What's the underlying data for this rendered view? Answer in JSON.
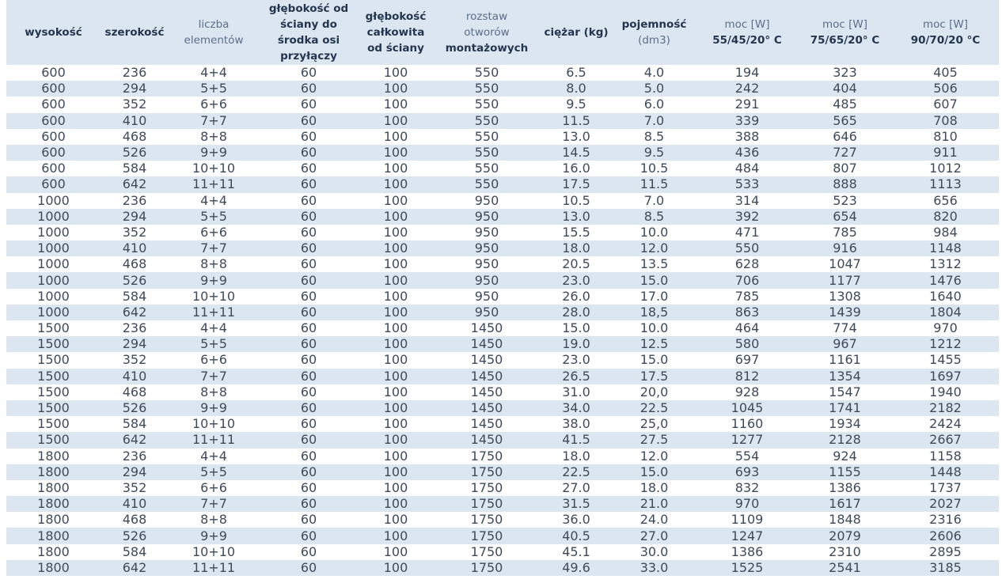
{
  "table": {
    "header": [
      [
        "wysokość"
      ],
      [
        "szerokość"
      ],
      [
        "liczba",
        "elementów"
      ],
      [
        "głębokość od",
        "ściany do",
        "środka osi",
        "przyłączy"
      ],
      [
        "głębokość",
        "całkowita",
        "od ściany"
      ],
      [
        "rozstaw",
        "otworów",
        "montażowych"
      ],
      [
        "ciężar (kg)"
      ],
      [
        "pojemność",
        "(dm3)"
      ],
      [
        "moc [W]",
        "55/45/20° C"
      ],
      [
        "moc [W]",
        "75/65/20° C"
      ],
      [
        "moc [W]",
        "90/70/20 °C"
      ]
    ],
    "rows": [
      [
        "600",
        "236",
        "4+4",
        "60",
        "100",
        "550",
        "6.5",
        "4.0",
        "194",
        "323",
        "405"
      ],
      [
        "600",
        "294",
        "5+5",
        "60",
        "100",
        "550",
        "8.0",
        "5.0",
        "242",
        "404",
        "506"
      ],
      [
        "600",
        "352",
        "6+6",
        "60",
        "100",
        "550",
        "9.5",
        "6.0",
        "291",
        "485",
        "607"
      ],
      [
        "600",
        "410",
        "7+7",
        "60",
        "100",
        "550",
        "11.5",
        "7.0",
        "339",
        "565",
        "708"
      ],
      [
        "600",
        "468",
        "8+8",
        "60",
        "100",
        "550",
        "13.0",
        "8.5",
        "388",
        "646",
        "810"
      ],
      [
        "600",
        "526",
        "9+9",
        "60",
        "100",
        "550",
        "14.5",
        "9.5",
        "436",
        "727",
        "911"
      ],
      [
        "600",
        "584",
        "10+10",
        "60",
        "100",
        "550",
        "16.0",
        "10.5",
        "484",
        "807",
        "1012"
      ],
      [
        "600",
        "642",
        "11+11",
        "60",
        "100",
        "550",
        "17.5",
        "11.5",
        "533",
        "888",
        "1113"
      ],
      [
        "1000",
        "236",
        "4+4",
        "60",
        "100",
        "950",
        "10.5",
        "7.0",
        "314",
        "523",
        "656"
      ],
      [
        "1000",
        "294",
        "5+5",
        "60",
        "100",
        "950",
        "13.0",
        "8.5",
        "392",
        "654",
        "820"
      ],
      [
        "1000",
        "352",
        "6+6",
        "60",
        "100",
        "950",
        "15.5",
        "10.0",
        "471",
        "785",
        "984"
      ],
      [
        "1000",
        "410",
        "7+7",
        "60",
        "100",
        "950",
        "18.0",
        "12.0",
        "550",
        "916",
        "1148"
      ],
      [
        "1000",
        "468",
        "8+8",
        "60",
        "100",
        "950",
        "20.5",
        "13.5",
        "628",
        "1047",
        "1312"
      ],
      [
        "1000",
        "526",
        "9+9",
        "60",
        "100",
        "950",
        "23.0",
        "15.0",
        "706",
        "1177",
        "1476"
      ],
      [
        "1000",
        "584",
        "10+10",
        "60",
        "100",
        "950",
        "26.0",
        "17.0",
        "785",
        "1308",
        "1640"
      ],
      [
        "1000",
        "642",
        "11+11",
        "60",
        "100",
        "950",
        "28.0",
        "18,5",
        "863",
        "1439",
        "1804"
      ],
      [
        "1500",
        "236",
        "4+4",
        "60",
        "100",
        "1450",
        "15.0",
        "10.0",
        "464",
        "774",
        "970"
      ],
      [
        "1500",
        "294",
        "5+5",
        "60",
        "100",
        "1450",
        "19.0",
        "12.5",
        "580",
        "967",
        "1212"
      ],
      [
        "1500",
        "352",
        "6+6",
        "60",
        "100",
        "1450",
        "23.0",
        "15.0",
        "697",
        "1161",
        "1455"
      ],
      [
        "1500",
        "410",
        "7+7",
        "60",
        "100",
        "1450",
        "26.5",
        "17.5",
        "812",
        "1354",
        "1697"
      ],
      [
        "1500",
        "468",
        "8+8",
        "60",
        "100",
        "1450",
        "31.0",
        "20,0",
        "928",
        "1547",
        "1940"
      ],
      [
        "1500",
        "526",
        "9+9",
        "60",
        "100",
        "1450",
        "34.0",
        "22.5",
        "1045",
        "1741",
        "2182"
      ],
      [
        "1500",
        "584",
        "10+10",
        "60",
        "100",
        "1450",
        "38.0",
        "25,0",
        "1160",
        "1934",
        "2424"
      ],
      [
        "1500",
        "642",
        "11+11",
        "60",
        "100",
        "1450",
        "41.5",
        "27.5",
        "1277",
        "2128",
        "2667"
      ],
      [
        "1800",
        "236",
        "4+4",
        "60",
        "100",
        "1750",
        "18.0",
        "12.0",
        "554",
        "924",
        "1158"
      ],
      [
        "1800",
        "294",
        "5+5",
        "60",
        "100",
        "1750",
        "22.5",
        "15.0",
        "693",
        "1155",
        "1448"
      ],
      [
        "1800",
        "352",
        "6+6",
        "60",
        "100",
        "1750",
        "27.0",
        "18.0",
        "832",
        "1386",
        "1737"
      ],
      [
        "1800",
        "410",
        "7+7",
        "60",
        "100",
        "1750",
        "31.5",
        "21.0",
        "970",
        "1617",
        "2027"
      ],
      [
        "1800",
        "468",
        "8+8",
        "60",
        "100",
        "1750",
        "36.0",
        "24.0",
        "1109",
        "1848",
        "2316"
      ],
      [
        "1800",
        "526",
        "9+9",
        "60",
        "100",
        "1750",
        "40.5",
        "27.0",
        "1247",
        "2079",
        "2606"
      ],
      [
        "1800",
        "584",
        "10+10",
        "60",
        "100",
        "1750",
        "45.1",
        "30.0",
        "1386",
        "2310",
        "2895"
      ],
      [
        "1800",
        "642",
        "11+11",
        "60",
        "100",
        "1750",
        "49.6",
        "33.0",
        "1525",
        "2541",
        "3185"
      ]
    ]
  }
}
